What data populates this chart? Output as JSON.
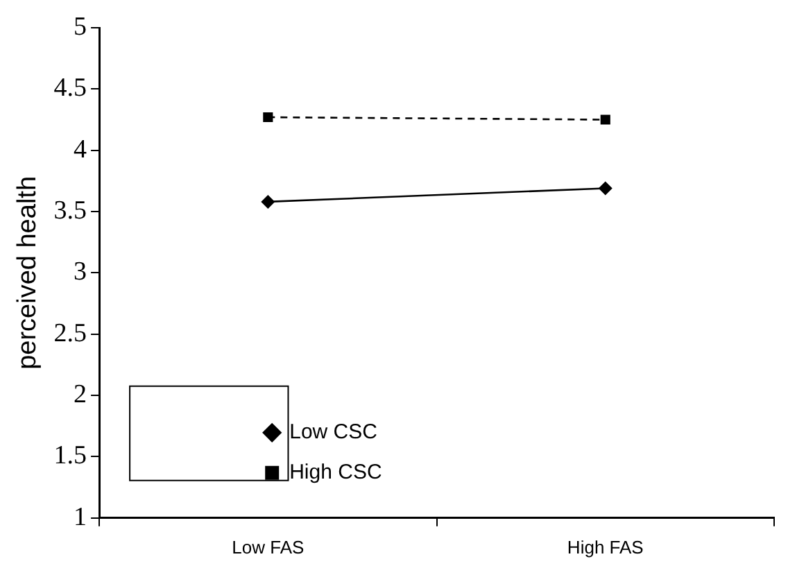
{
  "chart_data": {
    "type": "line",
    "ylabel": "perceived health",
    "categories": [
      "Low FAS",
      "High FAS"
    ],
    "series": [
      {
        "name": "Low CSC",
        "color": "#000000",
        "values": [
          3.58,
          3.69
        ],
        "marker": "diamond",
        "line_style": "solid"
      },
      {
        "name": "High CSC",
        "color": "#000000",
        "values": [
          4.27,
          4.25
        ],
        "marker": "square",
        "line_style": "dashed"
      }
    ],
    "ylim": [
      1,
      5
    ],
    "yticks": [
      1,
      1.5,
      2,
      2.5,
      3,
      3.5,
      4,
      4.5,
      5
    ],
    "grid": false,
    "legend": "bottom left"
  }
}
